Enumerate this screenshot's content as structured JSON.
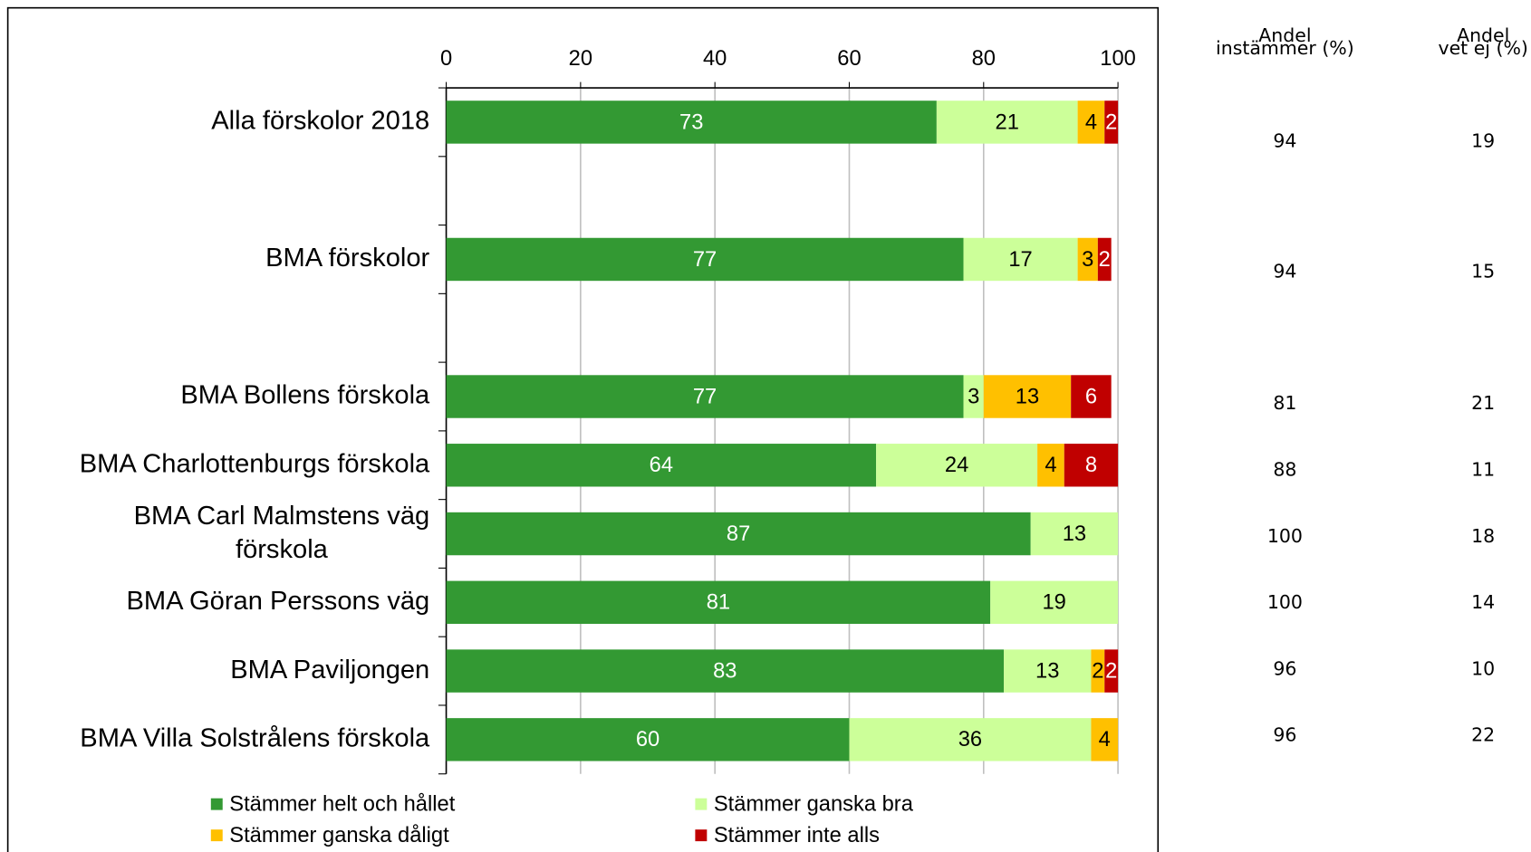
{
  "chart_data": {
    "type": "stacked-bar-horizontal",
    "categories": [
      "Alla förskolor 2018",
      null,
      "BMA förskolor",
      null,
      "BMA Bollens förskola",
      "BMA Charlottenburgs förskola",
      "BMA Carl Malmstens väg\nförskola",
      "BMA Göran Perssons väg",
      "BMA Paviljongen",
      "BMA Villa Solstrålens förskola"
    ],
    "series": [
      {
        "name": "Stämmer helt och hållet",
        "color": "#339933",
        "label_color": "#ffffff",
        "values": [
          73,
          null,
          77,
          null,
          77,
          64,
          87,
          81,
          83,
          60
        ]
      },
      {
        "name": "Stämmer ganska bra",
        "color": "#ccff99",
        "label_color": "#000000",
        "values": [
          21,
          null,
          17,
          null,
          3,
          24,
          13,
          19,
          13,
          36
        ]
      },
      {
        "name": "Stämmer ganska dåligt",
        "color": "#ffc000",
        "label_color": "#000000",
        "values": [
          4,
          null,
          3,
          null,
          13,
          4,
          null,
          null,
          2,
          4
        ]
      },
      {
        "name": "Stämmer inte alls",
        "color": "#c00000",
        "label_color": "#ffffff",
        "values": [
          2,
          null,
          2,
          null,
          6,
          8,
          null,
          null,
          2,
          null
        ]
      }
    ],
    "xlim": [
      0,
      100
    ],
    "xticks": [
      0,
      20,
      40,
      60,
      80,
      100
    ],
    "grid": true,
    "table": {
      "columns": [
        {
          "header": [
            "Andel",
            "instämmer (%)"
          ],
          "values": [
            94,
            94,
            81,
            88,
            100,
            100,
            96,
            96
          ]
        },
        {
          "header": [
            "Andel",
            "vet ej (%)"
          ],
          "values": [
            19,
            15,
            21,
            11,
            18,
            14,
            10,
            22
          ]
        }
      ]
    }
  }
}
